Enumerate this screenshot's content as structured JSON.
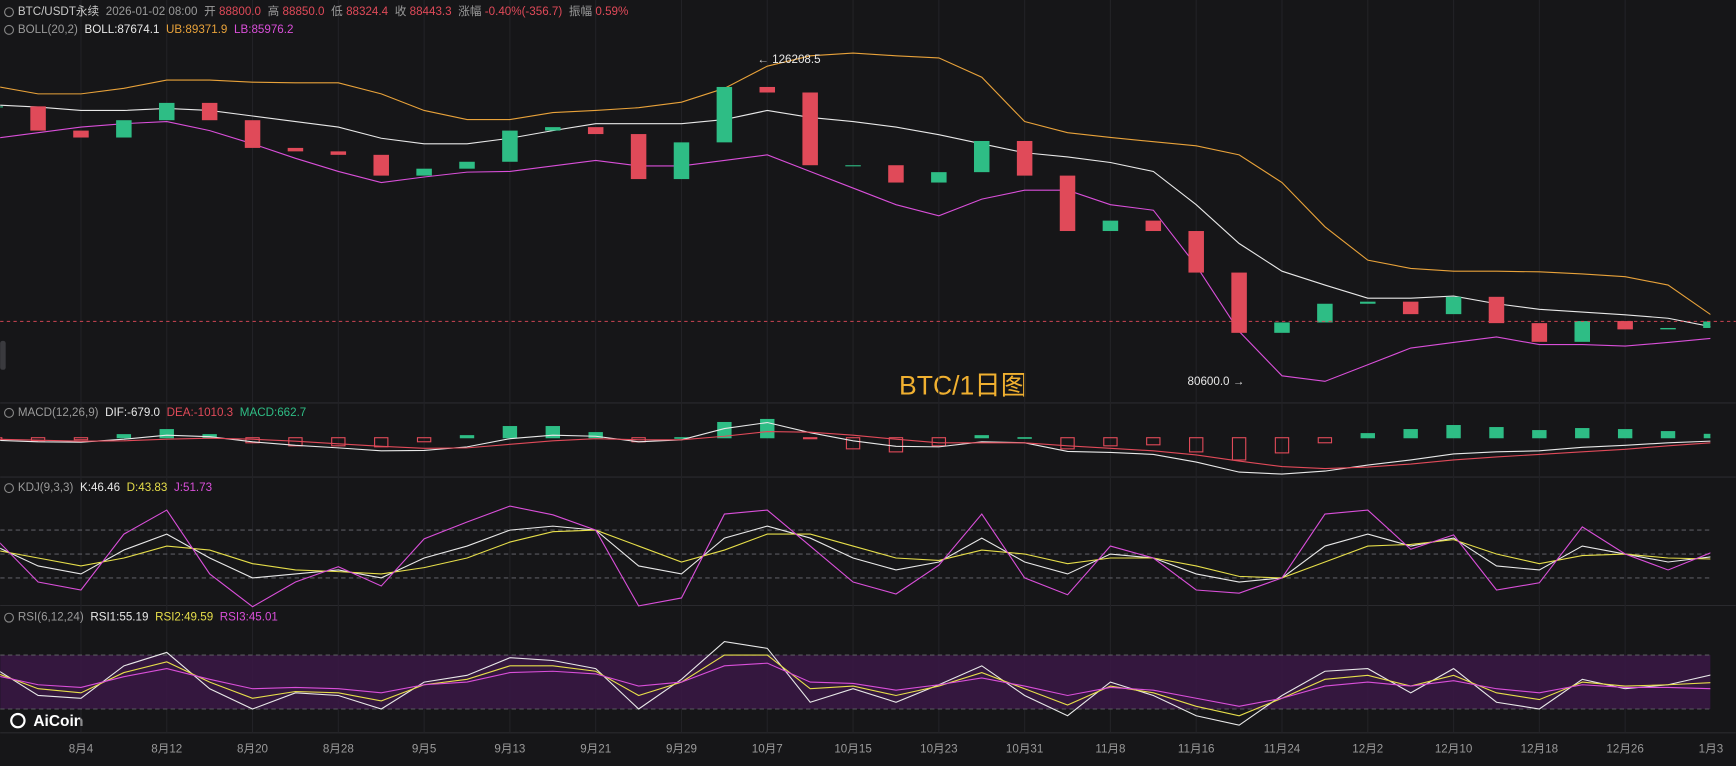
{
  "header": {
    "symbol": "BTC/USDT永续",
    "time": "2026-01-02 08:00",
    "fields": [
      {
        "label": "开",
        "value": "88800.0"
      },
      {
        "label": "高",
        "value": "88850.0"
      },
      {
        "label": "低",
        "value": "88324.4"
      },
      {
        "label": "收",
        "value": "88443.3"
      },
      {
        "label": "涨幅",
        "value": "-0.40%(-356.7)"
      },
      {
        "label": "振幅",
        "value": "0.59%"
      }
    ]
  },
  "watermark": "BTC/1日图",
  "logo": "AiCoin",
  "chart_data": [
    {
      "type": "candlestick",
      "indicator": "BOLL(20,2)",
      "categories": [
        null,
        null,
        "8月4",
        null,
        "8月12",
        null,
        "8月20",
        null,
        "8月28",
        null,
        "9月5",
        null,
        "9月13",
        null,
        "9月21",
        null,
        "9月29",
        null,
        "10月7",
        null,
        "10月15",
        null,
        "10月23",
        null,
        "10月31",
        null,
        "11月8",
        null,
        "11月16",
        null,
        "11月24",
        null,
        "12月2",
        null,
        "12月10",
        null,
        "12月18",
        null,
        "12月26",
        null,
        "1月3"
      ],
      "values": [
        119500,
        116000,
        115000,
        117500,
        120000,
        117500,
        113500,
        113000,
        112500,
        109500,
        110500,
        111500,
        116000,
        116500,
        115500,
        109000,
        114300,
        122300,
        121500,
        111000,
        111000,
        108500,
        110000,
        114500,
        109500,
        101500,
        103000,
        101500,
        95500,
        86800,
        88300,
        91000,
        91300,
        89500,
        92000,
        88200,
        85500,
        88500,
        87300,
        87500,
        88443.3
      ],
      "up_color": "#2ebd85",
      "down_color": "#e04a59",
      "high_label": "← 126208.5",
      "low_label": "80600.0 →",
      "ylim": [
        77000,
        130700
      ],
      "series": [
        {
          "name": "BOLL:87674.1",
          "color": "#e8e8e8",
          "values": [
            119700,
            119400,
            118900,
            118900,
            119200,
            118900,
            118100,
            117300,
            116500,
            114900,
            114100,
            114100,
            114900,
            116000,
            117000,
            117000,
            117000,
            117600,
            118900,
            117900,
            117300,
            116500,
            115400,
            114100,
            112800,
            112200,
            111400,
            110100,
            105300,
            99700,
            95700,
            93700,
            91800,
            91800,
            92100,
            91000,
            90200,
            89800,
            89400,
            88900,
            87700
          ]
        },
        {
          "name": "UB:89371.9",
          "color": "#e8a23a",
          "values": [
            122400,
            121300,
            121300,
            122100,
            123300,
            123300,
            123000,
            122900,
            122900,
            121300,
            118900,
            117600,
            117600,
            118600,
            118900,
            119300,
            120100,
            122100,
            125300,
            126800,
            127200,
            126800,
            126500,
            123700,
            117300,
            115700,
            115000,
            114400,
            113800,
            112500,
            108500,
            102100,
            97300,
            96100,
            95700,
            95700,
            95600,
            95300,
            94900,
            93700,
            89400
          ]
        },
        {
          "name": "LB:85976.2",
          "color": "#d94fd9",
          "values": [
            114900,
            115700,
            116500,
            117000,
            117300,
            116000,
            114100,
            112000,
            110100,
            108500,
            109300,
            110000,
            110100,
            110900,
            111700,
            110900,
            110900,
            111700,
            112500,
            110100,
            107700,
            105300,
            103700,
            106100,
            107400,
            107400,
            105300,
            104500,
            96500,
            87000,
            80600,
            79800,
            82200,
            84600,
            85400,
            86200,
            85100,
            85100,
            84900,
            85400,
            86000
          ]
        }
      ]
    },
    {
      "type": "macd",
      "indicator": "MACD(12,26,9)",
      "ylim": [
        -8000,
        6000
      ],
      "up_color": "#2ebd85",
      "down_color": "#e04a59",
      "series": [
        {
          "name": "DIF:-679.0",
          "color": "#e8e8e8",
          "values": [
            -500,
            -800,
            -900,
            -300,
            500,
            200,
            -800,
            -1500,
            -2000,
            -2600,
            -2500,
            -1800,
            -200,
            500,
            300,
            -800,
            -400,
            1800,
            3000,
            1000,
            -600,
            -1700,
            -1800,
            -800,
            -1000,
            -2700,
            -2900,
            -3300,
            -4800,
            -6800,
            -7200,
            -6600,
            -5400,
            -4400,
            -3200,
            -2800,
            -2600,
            -1900,
            -1500,
            -1000,
            -679
          ]
        },
        {
          "name": "DEA:-1010.3",
          "color": "#e04a59",
          "values": [
            -300,
            -500,
            -700,
            -600,
            -300,
            -100,
            -300,
            -700,
            -1200,
            -1700,
            -2100,
            -2000,
            -1300,
            -600,
            -200,
            -400,
            -400,
            300,
            1200,
            1100,
            500,
            -300,
            -1000,
            -1000,
            -1000,
            -1600,
            -2100,
            -2600,
            -3400,
            -4600,
            -5700,
            -6100,
            -5800,
            -5200,
            -4400,
            -3800,
            -3300,
            -2800,
            -2300,
            -1600,
            -1010.3
          ]
        },
        {
          "name": "MACD:662.7",
          "color": "#2ebd85",
          "mark": "bar",
          "values": [
            -400,
            -600,
            -400,
            600,
            1600,
            600,
            -1000,
            -1600,
            -1600,
            -1800,
            -800,
            400,
            2200,
            2200,
            1000,
            -800,
            0,
            3000,
            3600,
            -200,
            -2200,
            -2800,
            -1600,
            400,
            0,
            -2200,
            -1600,
            -1400,
            -2800,
            -4400,
            -3000,
            -1000,
            800,
            1600,
            2400,
            2000,
            1400,
            1800,
            1600,
            1200,
            662.7
          ]
        }
      ]
    },
    {
      "type": "line",
      "indicator": "KDJ(9,3,3)",
      "ylim": [
        -20,
        120
      ],
      "hlines": [
        20,
        50,
        80
      ],
      "series": [
        {
          "name": "K:46.46",
          "color": "#e8e8e8",
          "values": [
            60,
            35,
            25,
            55,
            75,
            45,
            20,
            25,
            30,
            20,
            45,
            60,
            80,
            85,
            80,
            35,
            25,
            70,
            85,
            70,
            45,
            30,
            40,
            70,
            40,
            25,
            50,
            45,
            25,
            15,
            20,
            60,
            75,
            60,
            70,
            35,
            30,
            60,
            50,
            40,
            46.46
          ]
        },
        {
          "name": "D:43.83",
          "color": "#e6de4a",
          "values": [
            55,
            45,
            35,
            45,
            60,
            55,
            38,
            30,
            28,
            25,
            33,
            45,
            65,
            78,
            80,
            60,
            40,
            55,
            75,
            75,
            60,
            45,
            42,
            55,
            50,
            38,
            45,
            45,
            35,
            22,
            20,
            40,
            60,
            62,
            68,
            50,
            38,
            48,
            50,
            45,
            43.83
          ]
        },
        {
          "name": "J:51.73",
          "color": "#d94fd9",
          "values": [
            70,
            15,
            5,
            75,
            105,
            25,
            -16,
            15,
            34,
            10,
            69,
            90,
            110,
            99,
            80,
            -15,
            -5,
            100,
            105,
            60,
            15,
            0,
            36,
            100,
            20,
            -1,
            60,
            45,
            5,
            1,
            20,
            100,
            105,
            56,
            74,
            5,
            14,
            84,
            50,
            30,
            51.73
          ]
        }
      ]
    },
    {
      "type": "line",
      "indicator": "RSI(6,12,24)",
      "ylim": [
        14,
        92
      ],
      "hlines": [
        30,
        70
      ],
      "band": true,
      "series": [
        {
          "name": "RSI1:55.19",
          "color": "#e8e8e8",
          "values": [
            60,
            40,
            38,
            62,
            72,
            45,
            30,
            42,
            40,
            30,
            50,
            55,
            68,
            66,
            60,
            30,
            52,
            80,
            75,
            35,
            45,
            35,
            48,
            62,
            40,
            25,
            50,
            40,
            25,
            18,
            40,
            58,
            60,
            42,
            60,
            35,
            30,
            52,
            45,
            48,
            55.19
          ]
        },
        {
          "name": "RSI2:49.59",
          "color": "#e6de4a",
          "values": [
            57,
            45,
            42,
            57,
            65,
            50,
            38,
            43,
            42,
            36,
            48,
            52,
            62,
            62,
            58,
            40,
            50,
            70,
            70,
            45,
            47,
            40,
            47,
            57,
            45,
            33,
            47,
            42,
            32,
            25,
            38,
            52,
            55,
            47,
            55,
            42,
            37,
            50,
            47,
            48,
            49.59
          ]
        },
        {
          "name": "RSI3:45.01",
          "color": "#d94fd9",
          "values": [
            55,
            48,
            46,
            54,
            60,
            52,
            45,
            46,
            45,
            42,
            48,
            50,
            57,
            58,
            56,
            47,
            50,
            62,
            64,
            50,
            49,
            44,
            48,
            53,
            47,
            40,
            46,
            44,
            38,
            32,
            38,
            47,
            50,
            47,
            51,
            45,
            42,
            48,
            46,
            46,
            45.01
          ]
        }
      ]
    }
  ]
}
